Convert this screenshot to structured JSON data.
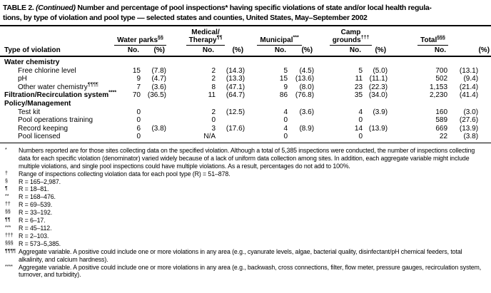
{
  "title": {
    "prefix": "TABLE 2. ",
    "continued": "(Continued)",
    "rest_line1": " Number and percentage of pool inspections* having specific violations of state and/or local health regula-",
    "line2": "tions, by type of violation and pool type — selected states and counties, United States, May–September 2002"
  },
  "table": {
    "row_header": "Type of violation",
    "col_no": "No.",
    "col_pct": "(%)",
    "groups": [
      {
        "line1": "",
        "line2": "Water parks",
        "sup": "§§"
      },
      {
        "line1": "Medical/",
        "line2": "Therapy",
        "sup": "¶¶"
      },
      {
        "line1": "",
        "line2": "Municipal",
        "sup": "***"
      },
      {
        "line1": "Camp",
        "line2": "grounds",
        "sup": "†††"
      },
      {
        "line1": "",
        "line2": "Total",
        "sup": "§§§"
      }
    ],
    "rows": [
      {
        "label": "Water chemistry",
        "sup": "",
        "indent": false,
        "bold": true,
        "cells": [
          "",
          "",
          "",
          "",
          "",
          "",
          "",
          "",
          "",
          ""
        ]
      },
      {
        "label": "Free chlorine level",
        "sup": "",
        "indent": true,
        "bold": false,
        "cells": [
          "15",
          "(7.8)",
          "2",
          "(14.3)",
          "5",
          "(4.5)",
          "5",
          "(5.0)",
          "700",
          "(13.1)"
        ]
      },
      {
        "label": "pH",
        "sup": "",
        "indent": true,
        "bold": false,
        "cells": [
          "9",
          "(4.7)",
          "2",
          "(13.3)",
          "15",
          "(13.6)",
          "11",
          "(11.1)",
          "502",
          "(9.4)"
        ]
      },
      {
        "label": "Other water chemistry",
        "sup": "¶¶¶¶",
        "indent": true,
        "bold": false,
        "cells": [
          "7",
          "(3.6)",
          "8",
          "(47.1)",
          "9",
          "(8.0)",
          "23",
          "(22.3)",
          "1,153",
          "(21.4)"
        ]
      },
      {
        "label": "Filtration/Recirculation system",
        "sup": "****",
        "indent": false,
        "bold": true,
        "cells": [
          "70",
          "(36.5)",
          "11",
          "(64.7)",
          "86",
          "(76.8)",
          "35",
          "(34.0)",
          "2,230",
          "(41.4)"
        ]
      },
      {
        "label": "Policy/Management",
        "sup": "",
        "indent": false,
        "bold": true,
        "cells": [
          "",
          "",
          "",
          "",
          "",
          "",
          "",
          "",
          "",
          ""
        ]
      },
      {
        "label": "Test kit",
        "sup": "",
        "indent": true,
        "bold": false,
        "cells": [
          "0",
          "",
          "2",
          "(12.5)",
          "4",
          "(3.6)",
          "4",
          "(3.9)",
          "160",
          "(3.0)"
        ]
      },
      {
        "label": "Pool operations training",
        "sup": "",
        "indent": true,
        "bold": false,
        "cells": [
          "0",
          "",
          "0",
          "",
          "0",
          "",
          "0",
          "",
          "589",
          "(27.6)"
        ]
      },
      {
        "label": "Record keeping",
        "sup": "",
        "indent": true,
        "bold": false,
        "cells": [
          "6",
          "(3.8)",
          "3",
          "(17.6)",
          "4",
          "(8.9)",
          "14",
          "(13.9)",
          "669",
          "(13.9)"
        ]
      },
      {
        "label": "Pool licensed",
        "sup": "",
        "indent": true,
        "bold": false,
        "cells": [
          "0",
          "",
          "N/A",
          "",
          "0",
          "",
          "0",
          "",
          "22",
          "(3.8)"
        ]
      }
    ]
  },
  "footnotes": [
    {
      "marker": "*",
      "text": "Numbers reported are for those sites collecting data on the specified violation. Although a total of 5,385 inspections were conducted, the number of inspections collecting data for each specific violation (denominator) varied widely because of a lack of uniform data collection among sites. In addition, each aggregate variable might include multiple violations, and single pool inspections could have multiple violations. As a result, percentages do not add to 100%."
    },
    {
      "marker": "†",
      "text": "Range of inspections collecting violation data for each pool type (R) = 51–878."
    },
    {
      "marker": "§",
      "text": "R = 165–2,987."
    },
    {
      "marker": "¶",
      "text": "R = 18–81."
    },
    {
      "marker": "**",
      "text": "R = 168–476."
    },
    {
      "marker": "††",
      "text": "R = 69–539."
    },
    {
      "marker": "§§",
      "text": "R = 33–192."
    },
    {
      "marker": "¶¶",
      "text": "R = 6–17."
    },
    {
      "marker": "***",
      "text": "R = 45–112."
    },
    {
      "marker": "†††",
      "text": "R = 2–103."
    },
    {
      "marker": "§§§",
      "text": "R = 573–5,385."
    },
    {
      "marker": "¶¶¶¶",
      "text": "Aggregate variable. A positive could include one or more violations in any area (e.g., cyanurate levels, algae, bacterial quality, disinfectant/pH chemical feeders, total alkalinity, and calcium hardness)."
    },
    {
      "marker": "****",
      "text": "Aggregate variable. A positive could include one or more violations in any area (e.g., backwash, cross connections, filter, flow meter, pressure gauges, recirculation system, turnover, and turbidity)."
    }
  ],
  "colors": {
    "text": "#000000",
    "background": "#ffffff",
    "rule": "#000000"
  }
}
